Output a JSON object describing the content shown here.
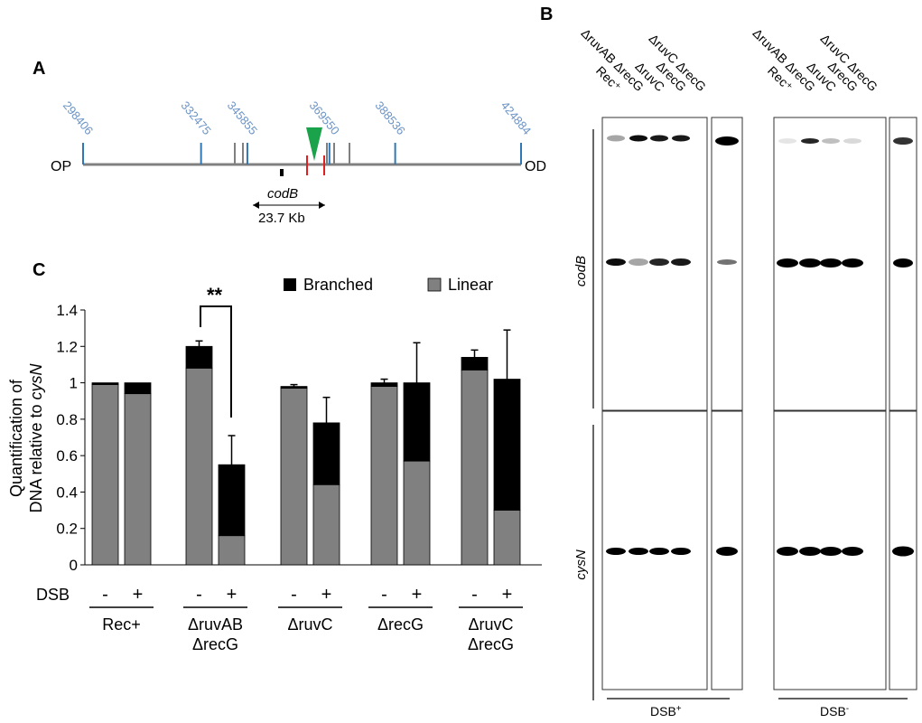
{
  "panel_a": {
    "letter": "A",
    "left_end": "OP",
    "right_end": "OD",
    "coordinates": [
      {
        "label": "298406",
        "value": 298406
      },
      {
        "label": "332475",
        "value": 332475
      },
      {
        "label": "345855",
        "value": 345855
      },
      {
        "label": "369550",
        "value": 369550
      },
      {
        "label": "388536",
        "value": 388536
      },
      {
        "label": "424884",
        "value": 424884
      }
    ],
    "probe_label": "codB",
    "fragment_size": "23.7 Kb",
    "colors": {
      "coord": "#6b93c6",
      "tick": "#2f78b5",
      "cut_site": "#e02020",
      "dsb_marker": "#1aa34a",
      "chromosome": "#808080"
    }
  },
  "panel_b": {
    "letter": "B",
    "lane_labels": [
      "Rec⁺",
      "ΔruvAB ΔrecG",
      "ΔruvC",
      "ΔrecG",
      "ΔruvC ΔrecG"
    ],
    "lane_label_html": [
      "Rec<sup>+</sup>",
      "Δ<i>ruvAB</i> Δ<i>recG</i>",
      "Δ<i>ruvC</i>",
      "Δ<i>recG</i>",
      "Δ<i>ruvC</i> Δ<i>recG</i>"
    ],
    "top_probe": "codB",
    "bottom_probe": "cysN",
    "group_left": "DSB",
    "group_left_sup": "+",
    "group_right": "DSB",
    "group_right_sup": "-"
  },
  "chart_data": {
    "type": "bar",
    "stacked": true,
    "panel_letter": "C",
    "ylabel_line1": "Quantification of",
    "ylabel_line2_prefix": "DNA relative to ",
    "ylabel_line2_gene": "cysN",
    "ylim": [
      0,
      1.4
    ],
    "yticks": [
      "0",
      "0.2",
      "0.4",
      "0.6",
      "0.8",
      "1",
      "1.2",
      "1.4"
    ],
    "yticks_values": [
      0,
      0.2,
      0.4,
      0.6,
      0.8,
      1.0,
      1.2,
      1.4
    ],
    "dsb_label": "DSB",
    "dsb_minus": "-",
    "dsb_plus": "+",
    "groups": [
      {
        "label_lines": [
          "Rec+"
        ],
        "bars": [
          {
            "dsb": "-",
            "linear": 0.99,
            "total": 1.0,
            "err": 0.0
          },
          {
            "dsb": "+",
            "linear": 0.94,
            "total": 1.0,
            "err": 0.0
          }
        ]
      },
      {
        "label_lines": [
          "ΔruvAB",
          "ΔrecG"
        ],
        "bars": [
          {
            "dsb": "-",
            "linear": 1.08,
            "total": 1.2,
            "err": 0.03
          },
          {
            "dsb": "+",
            "linear": 0.16,
            "total": 0.55,
            "err": 0.16
          }
        ]
      },
      {
        "label_lines": [
          "ΔruvC"
        ],
        "bars": [
          {
            "dsb": "-",
            "linear": 0.97,
            "total": 0.98,
            "err": 0.01
          },
          {
            "dsb": "+",
            "linear": 0.44,
            "total": 0.78,
            "err": 0.14
          }
        ]
      },
      {
        "label_lines": [
          "ΔrecG"
        ],
        "bars": [
          {
            "dsb": "-",
            "linear": 0.98,
            "total": 1.0,
            "err": 0.02
          },
          {
            "dsb": "+",
            "linear": 0.57,
            "total": 1.0,
            "err": 0.22
          }
        ]
      },
      {
        "label_lines": [
          "ΔruvC",
          "ΔrecG"
        ],
        "bars": [
          {
            "dsb": "-",
            "linear": 1.07,
            "total": 1.14,
            "err": 0.04
          },
          {
            "dsb": "+",
            "linear": 0.3,
            "total": 1.02,
            "err": 0.27
          }
        ]
      }
    ],
    "legend": [
      {
        "name": "Branched",
        "color": "#000000"
      },
      {
        "name": "Linear",
        "color": "#808080"
      }
    ],
    "significance": "**",
    "colors": {
      "branched": "#000000",
      "linear": "#808080"
    }
  }
}
